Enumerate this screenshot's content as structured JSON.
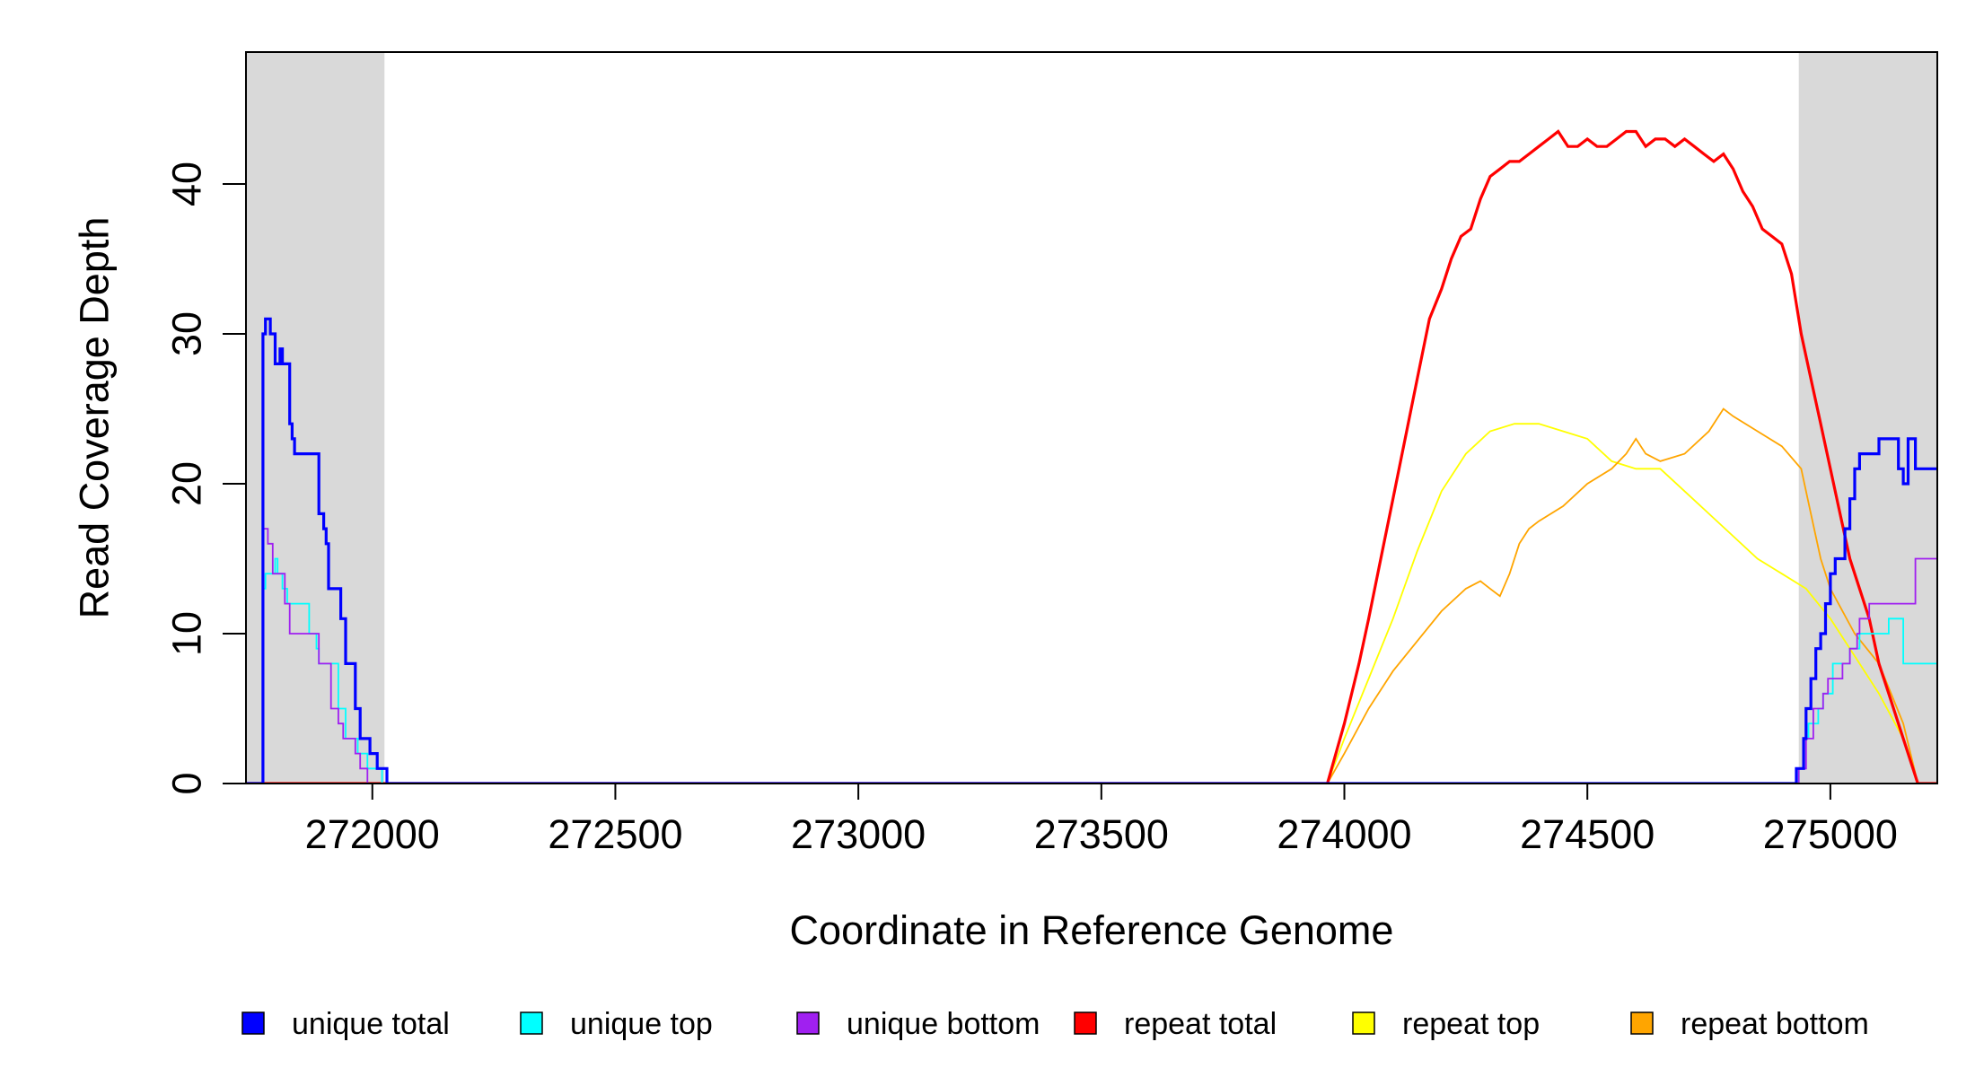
{
  "chart_data": {
    "type": "line",
    "xlabel": "Coordinate in Reference Genome",
    "ylabel": "Read Coverage Depth",
    "xlim": [
      271740,
      275220
    ],
    "ylim": [
      0,
      48.8
    ],
    "x_ticks": [
      272000,
      272500,
      273000,
      273500,
      274000,
      274500,
      275000
    ],
    "y_ticks": [
      0,
      10,
      20,
      30,
      40
    ],
    "x_tick_labels": [
      "272000",
      "272500",
      "273000",
      "273500",
      "274000",
      "274500",
      "275000"
    ],
    "y_tick_labels": [
      "0",
      "10",
      "20",
      "30",
      "40"
    ],
    "grid": false,
    "legend_position": "bottom",
    "shaded_regions": [
      {
        "x_start": 271740,
        "x_end": 272025,
        "color": "#d9d9d9"
      },
      {
        "x_start": 274935,
        "x_end": 275220,
        "color": "#d9d9d9"
      }
    ],
    "series": [
      {
        "name": "unique total",
        "color": "#0000ff",
        "step": true,
        "points": [
          [
            271740,
            0
          ],
          [
            271775,
            0
          ],
          [
            271775,
            30
          ],
          [
            271780,
            30
          ],
          [
            271780,
            31
          ],
          [
            271790,
            31
          ],
          [
            271790,
            30
          ],
          [
            271800,
            30
          ],
          [
            271800,
            28
          ],
          [
            271810,
            28
          ],
          [
            271810,
            29
          ],
          [
            271815,
            29
          ],
          [
            271815,
            28
          ],
          [
            271830,
            28
          ],
          [
            271830,
            24
          ],
          [
            271835,
            24
          ],
          [
            271835,
            23
          ],
          [
            271840,
            23
          ],
          [
            271840,
            22
          ],
          [
            271890,
            22
          ],
          [
            271890,
            18
          ],
          [
            271900,
            18
          ],
          [
            271900,
            17
          ],
          [
            271905,
            17
          ],
          [
            271905,
            16
          ],
          [
            271910,
            16
          ],
          [
            271910,
            13
          ],
          [
            271935,
            13
          ],
          [
            271935,
            11
          ],
          [
            271945,
            11
          ],
          [
            271945,
            8
          ],
          [
            271965,
            8
          ],
          [
            271965,
            5
          ],
          [
            271975,
            5
          ],
          [
            271975,
            3
          ],
          [
            271995,
            3
          ],
          [
            271995,
            2
          ],
          [
            272010,
            2
          ],
          [
            272010,
            1
          ],
          [
            272030,
            1
          ],
          [
            272030,
            0
          ],
          [
            274930,
            0
          ],
          [
            274930,
            1
          ],
          [
            274945,
            1
          ],
          [
            274945,
            3
          ],
          [
            274950,
            3
          ],
          [
            274950,
            5
          ],
          [
            274960,
            5
          ],
          [
            274960,
            7
          ],
          [
            274970,
            7
          ],
          [
            274970,
            9
          ],
          [
            274980,
            9
          ],
          [
            274980,
            10
          ],
          [
            274990,
            10
          ],
          [
            274990,
            12
          ],
          [
            275000,
            12
          ],
          [
            275000,
            14
          ],
          [
            275010,
            14
          ],
          [
            275010,
            15
          ],
          [
            275030,
            15
          ],
          [
            275030,
            17
          ],
          [
            275040,
            17
          ],
          [
            275040,
            19
          ],
          [
            275050,
            19
          ],
          [
            275050,
            21
          ],
          [
            275060,
            21
          ],
          [
            275060,
            22
          ],
          [
            275100,
            22
          ],
          [
            275100,
            23
          ],
          [
            275140,
            23
          ],
          [
            275140,
            21
          ],
          [
            275150,
            21
          ],
          [
            275150,
            20
          ],
          [
            275160,
            20
          ],
          [
            275160,
            23
          ],
          [
            275175,
            23
          ],
          [
            275175,
            21
          ],
          [
            275220,
            21
          ]
        ]
      },
      {
        "name": "unique top",
        "color": "#00ffff",
        "step": true,
        "points": [
          [
            271740,
            0
          ],
          [
            271775,
            0
          ],
          [
            271775,
            13
          ],
          [
            271780,
            13
          ],
          [
            271780,
            14
          ],
          [
            271800,
            14
          ],
          [
            271800,
            15
          ],
          [
            271805,
            15
          ],
          [
            271805,
            14
          ],
          [
            271815,
            14
          ],
          [
            271815,
            13
          ],
          [
            271825,
            13
          ],
          [
            271825,
            12
          ],
          [
            271870,
            12
          ],
          [
            271870,
            10
          ],
          [
            271885,
            10
          ],
          [
            271885,
            9
          ],
          [
            271890,
            9
          ],
          [
            271890,
            8
          ],
          [
            271930,
            8
          ],
          [
            271930,
            5
          ],
          [
            271945,
            5
          ],
          [
            271945,
            3
          ],
          [
            271970,
            3
          ],
          [
            271970,
            2
          ],
          [
            271990,
            2
          ],
          [
            271990,
            1
          ],
          [
            272020,
            1
          ],
          [
            272020,
            0
          ],
          [
            274935,
            0
          ],
          [
            274935,
            1
          ],
          [
            274945,
            1
          ],
          [
            274945,
            3
          ],
          [
            274955,
            3
          ],
          [
            274955,
            4
          ],
          [
            274975,
            4
          ],
          [
            274975,
            5
          ],
          [
            274985,
            5
          ],
          [
            274985,
            6
          ],
          [
            275005,
            6
          ],
          [
            275005,
            8
          ],
          [
            275040,
            8
          ],
          [
            275040,
            9
          ],
          [
            275060,
            9
          ],
          [
            275060,
            10
          ],
          [
            275120,
            10
          ],
          [
            275120,
            11
          ],
          [
            275150,
            11
          ],
          [
            275150,
            8
          ],
          [
            275220,
            8
          ]
        ]
      },
      {
        "name": "unique bottom",
        "color": "#a020f0",
        "step": true,
        "points": [
          [
            271740,
            0
          ],
          [
            271775,
            0
          ],
          [
            271775,
            17
          ],
          [
            271785,
            17
          ],
          [
            271785,
            16
          ],
          [
            271795,
            16
          ],
          [
            271795,
            14
          ],
          [
            271820,
            14
          ],
          [
            271820,
            12
          ],
          [
            271830,
            12
          ],
          [
            271830,
            10
          ],
          [
            271890,
            10
          ],
          [
            271890,
            8
          ],
          [
            271915,
            8
          ],
          [
            271915,
            5
          ],
          [
            271930,
            5
          ],
          [
            271930,
            4
          ],
          [
            271940,
            4
          ],
          [
            271940,
            3
          ],
          [
            271965,
            3
          ],
          [
            271965,
            2
          ],
          [
            271975,
            2
          ],
          [
            271975,
            1
          ],
          [
            271990,
            1
          ],
          [
            271990,
            0
          ],
          [
            274935,
            0
          ],
          [
            274935,
            1
          ],
          [
            274950,
            1
          ],
          [
            274950,
            3
          ],
          [
            274965,
            3
          ],
          [
            274965,
            5
          ],
          [
            274985,
            5
          ],
          [
            274985,
            6
          ],
          [
            274995,
            6
          ],
          [
            274995,
            7
          ],
          [
            275025,
            7
          ],
          [
            275025,
            8
          ],
          [
            275040,
            8
          ],
          [
            275040,
            9
          ],
          [
            275055,
            9
          ],
          [
            275055,
            10
          ],
          [
            275060,
            10
          ],
          [
            275060,
            11
          ],
          [
            275080,
            11
          ],
          [
            275080,
            12
          ],
          [
            275175,
            12
          ],
          [
            275175,
            15
          ],
          [
            275220,
            15
          ]
        ]
      },
      {
        "name": "repeat total",
        "color": "#ff0000",
        "step": false,
        "points": [
          [
            271740,
            0
          ],
          [
            273965,
            0
          ],
          [
            274000,
            4
          ],
          [
            274030,
            8
          ],
          [
            274050,
            11
          ],
          [
            274075,
            15
          ],
          [
            274100,
            19
          ],
          [
            274125,
            23
          ],
          [
            274150,
            27
          ],
          [
            274175,
            31
          ],
          [
            274200,
            33
          ],
          [
            274220,
            35
          ],
          [
            274240,
            36.5
          ],
          [
            274260,
            37
          ],
          [
            274280,
            39
          ],
          [
            274300,
            40.5
          ],
          [
            274320,
            41
          ],
          [
            274340,
            41.5
          ],
          [
            274360,
            41.5
          ],
          [
            274380,
            42
          ],
          [
            274400,
            42.5
          ],
          [
            274420,
            43
          ],
          [
            274440,
            43.5
          ],
          [
            274460,
            42.5
          ],
          [
            274480,
            42.5
          ],
          [
            274500,
            43
          ],
          [
            274520,
            42.5
          ],
          [
            274540,
            42.5
          ],
          [
            274560,
            43
          ],
          [
            274580,
            43.5
          ],
          [
            274600,
            43.5
          ],
          [
            274620,
            42.5
          ],
          [
            274640,
            43
          ],
          [
            274660,
            43
          ],
          [
            274680,
            42.5
          ],
          [
            274700,
            43
          ],
          [
            274720,
            42.5
          ],
          [
            274740,
            42
          ],
          [
            274760,
            41.5
          ],
          [
            274780,
            42
          ],
          [
            274800,
            41
          ],
          [
            274820,
            39.5
          ],
          [
            274840,
            38.5
          ],
          [
            274860,
            37
          ],
          [
            274880,
            36.5
          ],
          [
            274900,
            36
          ],
          [
            274920,
            34
          ],
          [
            274940,
            30
          ],
          [
            274960,
            27
          ],
          [
            274980,
            24
          ],
          [
            275000,
            21
          ],
          [
            275020,
            18
          ],
          [
            275040,
            15
          ],
          [
            275060,
            13
          ],
          [
            275080,
            11
          ],
          [
            275100,
            8
          ],
          [
            275120,
            6
          ],
          [
            275140,
            4
          ],
          [
            275160,
            2
          ],
          [
            275180,
            0
          ],
          [
            275220,
            0
          ]
        ]
      },
      {
        "name": "repeat top",
        "color": "#ffff00",
        "step": false,
        "points": [
          [
            271740,
            0
          ],
          [
            273965,
            0
          ],
          [
            274000,
            3
          ],
          [
            274050,
            7
          ],
          [
            274100,
            11
          ],
          [
            274150,
            15.5
          ],
          [
            274200,
            19.5
          ],
          [
            274250,
            22
          ],
          [
            274300,
            23.5
          ],
          [
            274350,
            24
          ],
          [
            274400,
            24
          ],
          [
            274450,
            23.5
          ],
          [
            274500,
            23
          ],
          [
            274550,
            21.5
          ],
          [
            274600,
            21
          ],
          [
            274650,
            21
          ],
          [
            274700,
            19.5
          ],
          [
            274750,
            18
          ],
          [
            274800,
            16.5
          ],
          [
            274850,
            15
          ],
          [
            274900,
            14
          ],
          [
            274950,
            13
          ],
          [
            275000,
            11
          ],
          [
            275050,
            8.5
          ],
          [
            275100,
            6
          ],
          [
            275150,
            3
          ],
          [
            275180,
            0
          ],
          [
            275220,
            0
          ]
        ]
      },
      {
        "name": "repeat bottom",
        "color": "#ffa500",
        "step": false,
        "points": [
          [
            271740,
            0
          ],
          [
            273965,
            0
          ],
          [
            274000,
            2
          ],
          [
            274050,
            5
          ],
          [
            274100,
            7.5
          ],
          [
            274150,
            9.5
          ],
          [
            274200,
            11.5
          ],
          [
            274250,
            13
          ],
          [
            274280,
            13.5
          ],
          [
            274300,
            13
          ],
          [
            274320,
            12.5
          ],
          [
            274340,
            14
          ],
          [
            274360,
            16
          ],
          [
            274380,
            17
          ],
          [
            274400,
            17.5
          ],
          [
            274450,
            18.5
          ],
          [
            274500,
            20
          ],
          [
            274550,
            21
          ],
          [
            274580,
            22
          ],
          [
            274600,
            23
          ],
          [
            274620,
            22
          ],
          [
            274650,
            21.5
          ],
          [
            274700,
            22
          ],
          [
            274750,
            23.5
          ],
          [
            274780,
            25
          ],
          [
            274800,
            24.5
          ],
          [
            274850,
            23.5
          ],
          [
            274900,
            22.5
          ],
          [
            274940,
            21
          ],
          [
            274960,
            18
          ],
          [
            274980,
            15
          ],
          [
            275000,
            13
          ],
          [
            275050,
            10
          ],
          [
            275100,
            8
          ],
          [
            275150,
            4
          ],
          [
            275180,
            0
          ],
          [
            275220,
            0
          ]
        ]
      }
    ]
  }
}
